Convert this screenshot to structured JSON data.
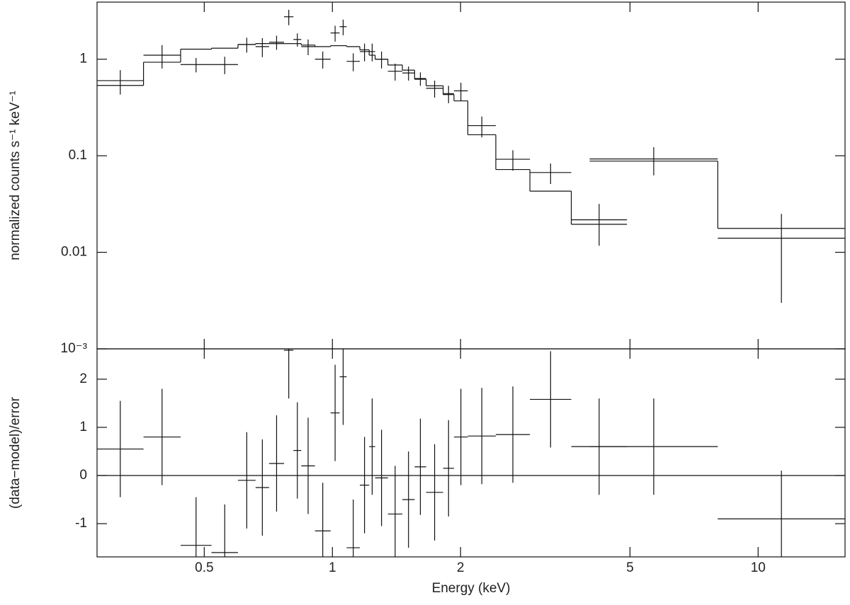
{
  "chart_data": [
    {
      "type": "errorbar",
      "log_x": true,
      "log_y": true,
      "ylabel": "normalized counts s⁻¹ keV⁻¹",
      "x_low": [
        0.28,
        0.36,
        0.44,
        0.52,
        0.6,
        0.66,
        0.71,
        0.77,
        0.81,
        0.845,
        0.91,
        0.99,
        1.04,
        1.08,
        1.16,
        1.22,
        1.26,
        1.35,
        1.46,
        1.56,
        1.66,
        1.82,
        1.93,
        2.08,
        2.42,
        2.91,
        3.64,
        4.02,
        8.04
      ],
      "x_high": [
        0.36,
        0.44,
        0.52,
        0.6,
        0.66,
        0.71,
        0.77,
        0.81,
        0.845,
        0.91,
        0.99,
        1.04,
        1.08,
        1.16,
        1.22,
        1.26,
        1.35,
        1.46,
        1.56,
        1.66,
        1.82,
        1.93,
        2.08,
        2.42,
        2.91,
        3.64,
        4.92,
        8.04,
        16
      ],
      "values": [
        0.6,
        1.1,
        0.88,
        0.88,
        1.42,
        1.35,
        1.5,
        2.75,
        1.6,
        1.35,
        1.0,
        1.87,
        2.17,
        0.95,
        1.2,
        1.2,
        1.0,
        0.75,
        0.72,
        0.63,
        0.5,
        0.44,
        0.47,
        0.205,
        0.092,
        0.067,
        0.0217,
        0.0926,
        0.014
      ],
      "errors": [
        0.17,
        0.3,
        0.15,
        0.18,
        0.25,
        0.3,
        0.25,
        0.5,
        0.25,
        0.25,
        0.2,
        0.35,
        0.4,
        0.2,
        0.25,
        0.25,
        0.2,
        0.15,
        0.12,
        0.1,
        0.1,
        0.09,
        0.1,
        0.05,
        0.022,
        0.016,
        0.01,
        0.03,
        0.011
      ],
      "model": [
        0.535,
        0.93,
        1.27,
        1.3,
        1.42,
        1.45,
        1.45,
        1.45,
        1.45,
        1.4,
        1.35,
        1.38,
        1.38,
        1.35,
        1.25,
        1.1,
        1.0,
        0.87,
        0.77,
        0.62,
        0.53,
        0.43,
        0.37,
        0.165,
        0.072,
        0.043,
        0.0195,
        0.088,
        0.0177
      ],
      "xlim": [
        0.28,
        16
      ],
      "ylim": [
        0.001,
        3.9
      ],
      "yticks": [
        {
          "value": 0.001,
          "label": "10⁻³"
        },
        0.01,
        0.1,
        1
      ]
    },
    {
      "type": "errorbar",
      "log_x": true,
      "log_y": false,
      "ylabel": "(data−model)/error",
      "xlabel": "Energy (keV)",
      "x_low": [
        0.28,
        0.36,
        0.44,
        0.52,
        0.6,
        0.66,
        0.71,
        0.77,
        0.81,
        0.845,
        0.91,
        0.99,
        1.04,
        1.08,
        1.16,
        1.22,
        1.26,
        1.35,
        1.46,
        1.56,
        1.66,
        1.82,
        1.93,
        2.08,
        2.42,
        2.91,
        3.64,
        4.02,
        8.04
      ],
      "x_high": [
        0.36,
        0.44,
        0.52,
        0.6,
        0.66,
        0.71,
        0.77,
        0.81,
        0.845,
        0.91,
        0.99,
        1.04,
        1.08,
        1.16,
        1.22,
        1.26,
        1.35,
        1.46,
        1.56,
        1.66,
        1.82,
        1.93,
        2.08,
        2.42,
        2.91,
        3.64,
        4.92,
        8.04,
        16
      ],
      "values": [
        0.55,
        0.8,
        -1.45,
        -1.6,
        -0.1,
        -0.25,
        0.25,
        2.6,
        0.52,
        0.2,
        -1.15,
        1.3,
        2.05,
        -1.5,
        -0.2,
        0.6,
        -0.05,
        -0.8,
        -0.5,
        0.18,
        -0.35,
        0.15,
        0.8,
        0.82,
        0.85,
        1.58,
        0.6,
        0.6,
        -0.9
      ],
      "errors": [
        1,
        1,
        1,
        1,
        1,
        1,
        1,
        1,
        1,
        1,
        1,
        1,
        1,
        1,
        1,
        1,
        1,
        1,
        1,
        1,
        1,
        1,
        1,
        1,
        1,
        1,
        1,
        1,
        1
      ],
      "reference_line": 0,
      "xlim": [
        0.28,
        16
      ],
      "ylim": [
        -1.69,
        2.63
      ],
      "xticks": [
        0.5,
        1,
        2,
        5,
        10
      ],
      "yticks": [
        -1,
        0,
        1,
        2
      ]
    }
  ]
}
